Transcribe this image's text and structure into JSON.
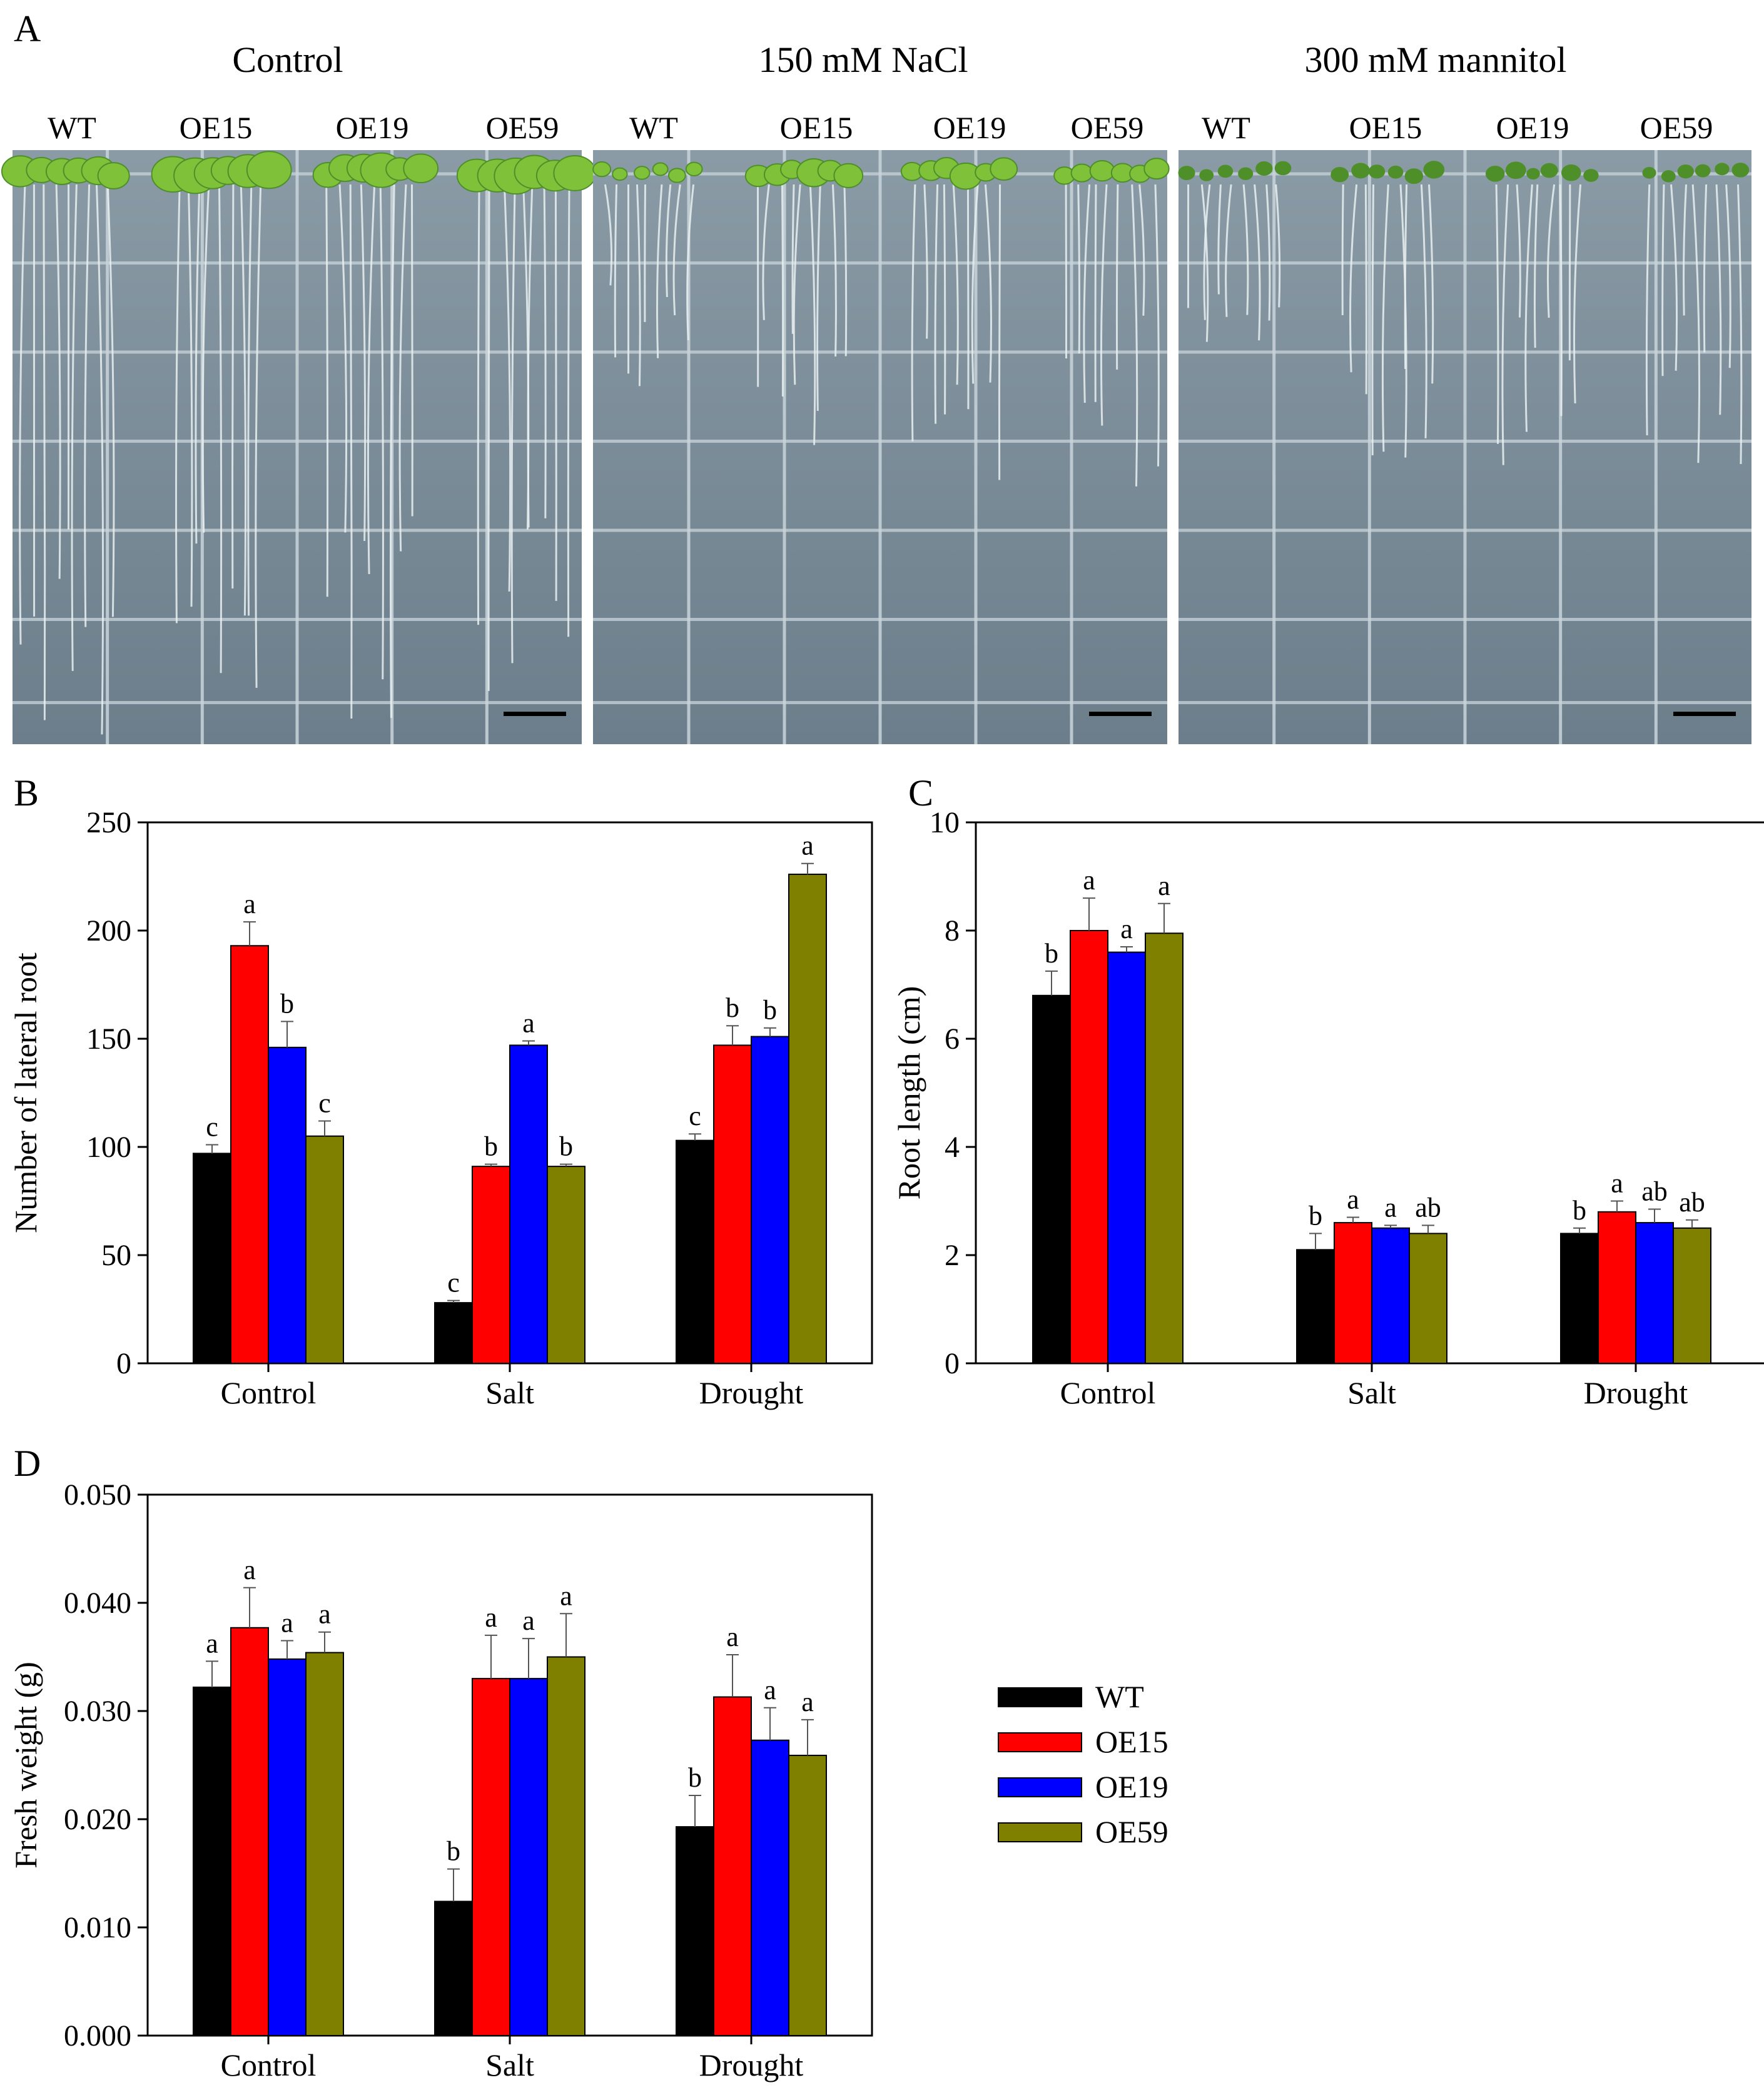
{
  "figure": {
    "panel_labels": {
      "a": "A",
      "b": "B",
      "c": "C",
      "d": "D"
    },
    "photo_panels": [
      {
        "title": "Control",
        "genotypes": [
          "WT",
          "OE15",
          "OE19",
          "OE59"
        ]
      },
      {
        "title": "150 mM NaCl",
        "genotypes": [
          "WT",
          "OE15",
          "OE19",
          "OE59"
        ]
      },
      {
        "title": "300 mM mannitol",
        "genotypes": [
          "WT",
          "OE15",
          "OE19",
          "OE59"
        ]
      }
    ],
    "colors": {
      "plate": "#7b8d9a",
      "plate_dark": "#5e707d",
      "grid": "#c9d4da",
      "seedling": "#7fc23a",
      "seedling_dark": "#4f8f2a",
      "root": "#e8eef0",
      "scalebar": "#000000"
    }
  },
  "legend": {
    "items": [
      {
        "label": "WT",
        "color": "#000000"
      },
      {
        "label": "OE15",
        "color": "#ff0000"
      },
      {
        "label": "OE19",
        "color": "#0000ff"
      },
      {
        "label": "OE59",
        "color": "#808000"
      }
    ]
  },
  "chart_data": [
    {
      "id": "B",
      "type": "bar",
      "title": "",
      "ylabel": "Number of lateral root",
      "xlabel": "",
      "categories": [
        "Control",
        "Salt",
        "Drought"
      ],
      "ylim": [
        0,
        250
      ],
      "yticks": [
        0,
        50,
        100,
        150,
        200,
        250
      ],
      "ytick_labels": [
        "0",
        "50",
        "100",
        "150",
        "200",
        "250"
      ],
      "series": [
        {
          "name": "WT",
          "color": "#000000",
          "values": [
            97,
            28,
            103
          ],
          "errors": [
            4,
            1,
            3
          ],
          "letters": [
            "c",
            "c",
            "c"
          ]
        },
        {
          "name": "OE15",
          "color": "#ff0000",
          "values": [
            193,
            91,
            147
          ],
          "errors": [
            11,
            1,
            9
          ],
          "letters": [
            "a",
            "b",
            "b"
          ]
        },
        {
          "name": "OE19",
          "color": "#0000ff",
          "values": [
            146,
            147,
            151
          ],
          "errors": [
            12,
            2,
            4
          ],
          "letters": [
            "b",
            "a",
            "b"
          ]
        },
        {
          "name": "OE59",
          "color": "#808000",
          "values": [
            105,
            91,
            226
          ],
          "errors": [
            7,
            1,
            5
          ],
          "letters": [
            "c",
            "b",
            "a"
          ]
        }
      ]
    },
    {
      "id": "C",
      "type": "bar",
      "title": "",
      "ylabel": "Root length (cm)",
      "xlabel": "",
      "categories": [
        "Control",
        "Salt",
        "Drought"
      ],
      "ylim": [
        0,
        10
      ],
      "yticks": [
        0,
        2,
        4,
        6,
        8,
        10
      ],
      "ytick_labels": [
        "0",
        "2",
        "4",
        "6",
        "8",
        "10"
      ],
      "series": [
        {
          "name": "WT",
          "color": "#000000",
          "values": [
            6.8,
            2.1,
            2.4
          ],
          "errors": [
            0.45,
            0.3,
            0.1
          ],
          "letters": [
            "b",
            "b",
            "b"
          ]
        },
        {
          "name": "OE15",
          "color": "#ff0000",
          "values": [
            8.0,
            2.6,
            2.8
          ],
          "errors": [
            0.6,
            0.1,
            0.2
          ],
          "letters": [
            "a",
            "a",
            "a"
          ]
        },
        {
          "name": "OE19",
          "color": "#0000ff",
          "values": [
            7.6,
            2.5,
            2.6
          ],
          "errors": [
            0.1,
            0.05,
            0.25
          ],
          "letters": [
            "a",
            "a",
            "ab"
          ]
        },
        {
          "name": "OE59",
          "color": "#808000",
          "values": [
            7.95,
            2.4,
            2.5
          ],
          "errors": [
            0.55,
            0.15,
            0.15
          ],
          "letters": [
            "a",
            "ab",
            "ab"
          ]
        }
      ]
    },
    {
      "id": "D",
      "type": "bar",
      "title": "",
      "ylabel": "Fresh weight (g)",
      "xlabel": "",
      "categories": [
        "Control",
        "Salt",
        "Drought"
      ],
      "ylim": [
        0,
        0.05
      ],
      "yticks": [
        0,
        0.01,
        0.02,
        0.03,
        0.04,
        0.05
      ],
      "ytick_labels": [
        "0.000",
        "0.010",
        "0.020",
        "0.030",
        "0.040",
        "0.050"
      ],
      "series": [
        {
          "name": "WT",
          "color": "#000000",
          "values": [
            0.0322,
            0.0124,
            0.0193
          ],
          "errors": [
            0.0024,
            0.003,
            0.0029
          ],
          "letters": [
            "a",
            "b",
            "b"
          ]
        },
        {
          "name": "OE15",
          "color": "#ff0000",
          "values": [
            0.0377,
            0.033,
            0.0313
          ],
          "errors": [
            0.0037,
            0.004,
            0.0039
          ],
          "letters": [
            "a",
            "a",
            "a"
          ]
        },
        {
          "name": "OE19",
          "color": "#0000ff",
          "values": [
            0.0348,
            0.033,
            0.0273
          ],
          "errors": [
            0.0017,
            0.0037,
            0.003
          ],
          "letters": [
            "a",
            "a",
            "a"
          ]
        },
        {
          "name": "OE59",
          "color": "#808000",
          "values": [
            0.0354,
            0.035,
            0.0259
          ],
          "errors": [
            0.0019,
            0.004,
            0.0033
          ],
          "letters": [
            "a",
            "a",
            "a"
          ]
        }
      ]
    }
  ]
}
